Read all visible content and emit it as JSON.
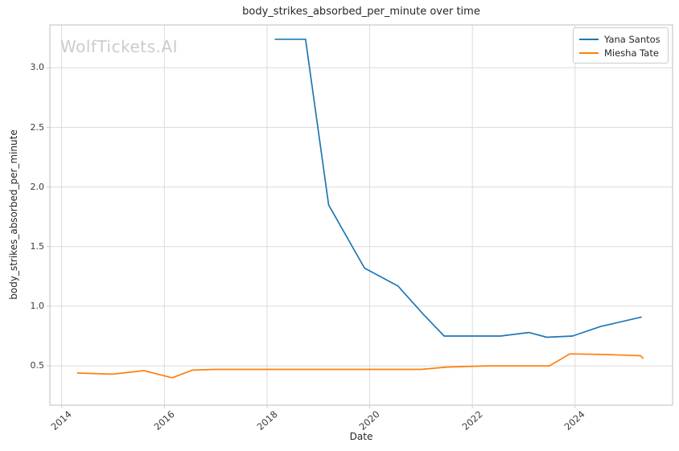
{
  "watermark": "WolfTickets.AI",
  "chart_data": {
    "type": "line",
    "title": "body_strikes_absorbed_per_minute over time",
    "xlabel": "Date",
    "ylabel": "body_strikes_absorbed_per_minute",
    "x_ticks": [
      2014,
      2016,
      2018,
      2020,
      2022,
      2024
    ],
    "y_ticks": [
      0.5,
      1.0,
      1.5,
      2.0,
      2.5,
      3.0
    ],
    "xlim": [
      2013.77,
      2025.9
    ],
    "ylim": [
      0.17,
      3.36
    ],
    "grid": true,
    "legend_position": "upper right",
    "colors": {
      "grid": "#dcdcdc",
      "spine": "#cccccc",
      "tick": "#cccccc",
      "text": "#262626",
      "watermark": "#cccccc"
    },
    "series": [
      {
        "name": "Yana Santos",
        "color": "#1f77b4",
        "points": [
          [
            2018.15,
            3.24
          ],
          [
            2018.75,
            3.24
          ],
          [
            2019.2,
            1.85
          ],
          [
            2019.9,
            1.32
          ],
          [
            2020.55,
            1.17
          ],
          [
            2021.05,
            0.93
          ],
          [
            2021.45,
            0.75
          ],
          [
            2022.0,
            0.75
          ],
          [
            2022.55,
            0.75
          ],
          [
            2023.1,
            0.78
          ],
          [
            2023.45,
            0.74
          ],
          [
            2023.95,
            0.75
          ],
          [
            2024.5,
            0.83
          ],
          [
            2025.3,
            0.91
          ]
        ]
      },
      {
        "name": "Miesha Tate",
        "color": "#ff7f0e",
        "points": [
          [
            2014.3,
            0.44
          ],
          [
            2015.0,
            0.43
          ],
          [
            2015.6,
            0.46
          ],
          [
            2016.15,
            0.4
          ],
          [
            2016.55,
            0.465
          ],
          [
            2017.0,
            0.47
          ],
          [
            2018.0,
            0.47
          ],
          [
            2019.0,
            0.47
          ],
          [
            2020.0,
            0.47
          ],
          [
            2021.0,
            0.47
          ],
          [
            2021.5,
            0.49
          ],
          [
            2022.3,
            0.5
          ],
          [
            2023.5,
            0.5
          ],
          [
            2023.9,
            0.6
          ],
          [
            2024.6,
            0.595
          ],
          [
            2025.28,
            0.585
          ],
          [
            2025.33,
            0.56
          ]
        ]
      }
    ]
  }
}
